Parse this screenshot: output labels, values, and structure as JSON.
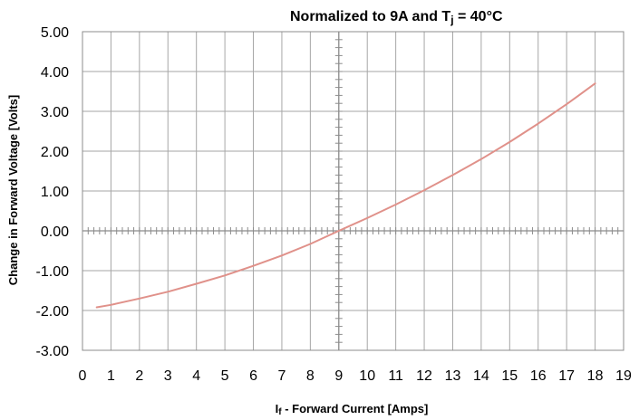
{
  "chart_data": {
    "type": "line",
    "title_parts": [
      "Normalized to 9A and T",
      "j",
      " = 40°C"
    ],
    "xlabel_parts": [
      "I",
      "f",
      " - Forward Current [Amps]"
    ],
    "ylabel": "Change in Forward Voltage [Volts]",
    "xlim": [
      0,
      19
    ],
    "ylim": [
      -3,
      5
    ],
    "x_ticks": [
      "0",
      "1",
      "2",
      "3",
      "4",
      "5",
      "6",
      "7",
      "8",
      "9",
      "10",
      "11",
      "12",
      "13",
      "14",
      "15",
      "16",
      "17",
      "18",
      "19"
    ],
    "y_ticks": [
      "-3.00",
      "-2.00",
      "-1.00",
      "0.00",
      "1.00",
      "2.00",
      "3.00",
      "4.00",
      "5.00"
    ],
    "grid": true,
    "series": [
      {
        "color": "#e0918a",
        "x": [
          0.5,
          1,
          2,
          3,
          4,
          5,
          6,
          7,
          8,
          9,
          10,
          11,
          12,
          13,
          14,
          15,
          16,
          17,
          18
        ],
        "y": [
          -1.92,
          -1.86,
          -1.7,
          -1.53,
          -1.33,
          -1.12,
          -0.88,
          -0.62,
          -0.33,
          0.0,
          0.32,
          0.66,
          1.02,
          1.4,
          1.8,
          2.23,
          2.69,
          3.18,
          3.7
        ]
      }
    ]
  }
}
